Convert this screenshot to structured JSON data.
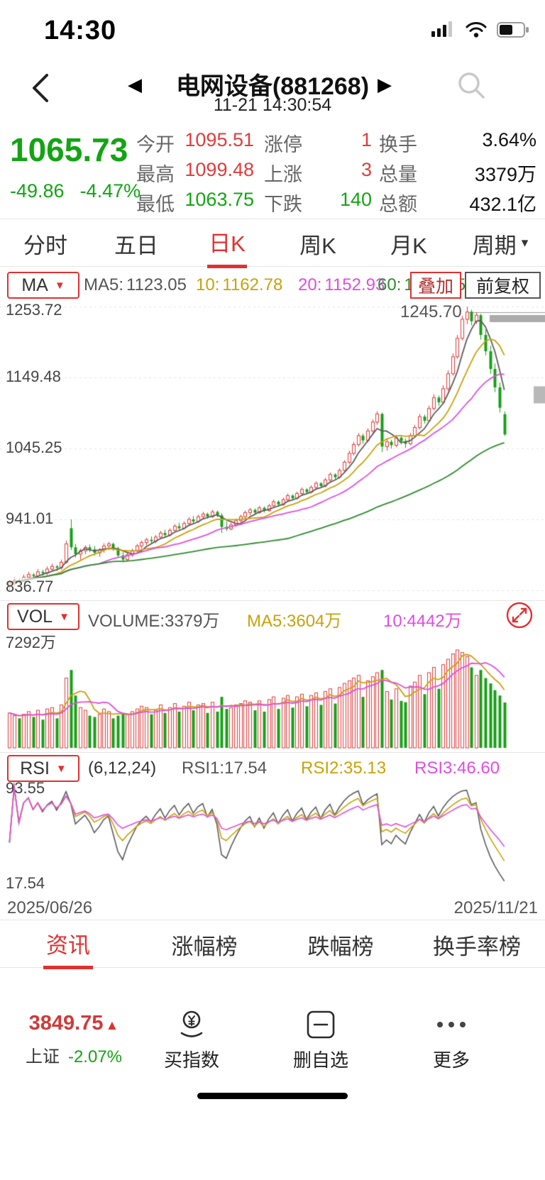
{
  "colors": {
    "up_red": "#e23b3b",
    "down_green": "#18a018",
    "accent_red": "#e03131",
    "price_green": "#13a413",
    "ma5": "#5c5c5c",
    "ma10": "#c9a20a",
    "ma20": "#e04de0",
    "ma60": "#2e8b2e"
  },
  "icons": {
    "caret_down": "▾",
    "prev": "◀",
    "next": "▶",
    "dropdown": "▼"
  },
  "status_bar": {
    "time": "14:30"
  },
  "header": {
    "title": "电网设备(881268)",
    "timestamp": "11-21 14:30:54"
  },
  "quote": {
    "price": "1065.73",
    "change": "-49.86",
    "change_pct": "-4.47%",
    "open_label": "今开",
    "open": "1095.51",
    "high_label": "最高",
    "high": "1099.48",
    "low_label": "最低",
    "low": "1063.75",
    "limit_label": "涨停",
    "limit": "1",
    "up_label": "上涨",
    "up": "3",
    "down_label": "下跌",
    "down": "140",
    "turnover_label": "换手",
    "turnover": "3.64%",
    "volume_label": "总量",
    "volume": "3379万",
    "amount_label": "总额",
    "amount": "432.1亿"
  },
  "period_tabs": [
    "分时",
    "五日",
    "日K",
    "周K",
    "月K",
    "周期"
  ],
  "indicator": {
    "ma_selector": "MA",
    "ma5_label": "MA5:",
    "ma5": "1123.05",
    "ma10_label": "10:",
    "ma10": "1162.78",
    "ma20_label": "20:",
    "ma20": "1152.93",
    "ma60_label": "60:",
    "ma60": "1045.45",
    "overlay": "叠加",
    "adjust": "前复权"
  },
  "kline": {
    "axis_labels": [
      "1253.72",
      "1149.48",
      "1045.25",
      "941.01",
      "836.77"
    ],
    "annotation": "1245.70"
  },
  "vol_panel": {
    "selector": "VOL",
    "volume_label": "VOLUME:",
    "volume": "3379万",
    "ma5_label": "MA5:",
    "ma5": "3604万",
    "ma10_label": "10:",
    "ma10": "4442万",
    "axis_max": "7292万"
  },
  "rsi_panel": {
    "selector": "RSI",
    "params": "(6,12,24)",
    "rsi1_label": "RSI1:",
    "rsi1": "17.54",
    "rsi2_label": "RSI2:",
    "rsi2": "35.13",
    "rsi3_label": "RSI3:",
    "rsi3": "46.60",
    "axis_top": "93.55",
    "axis_bottom": "17.54"
  },
  "dates": {
    "start": "2025/06/26",
    "end": "2025/11/21"
  },
  "bottom_tabs": [
    "资讯",
    "涨幅榜",
    "跌幅榜",
    "换手率榜"
  ],
  "bottom_bar": {
    "index_value": "3849.75",
    "index_arrow": "▲",
    "index_name": "上证",
    "index_change": "-2.07%",
    "action_buy": "买指数",
    "action_del": "删自选",
    "action_more": "更多"
  },
  "chart_data": {
    "type": "candlestick",
    "symbol": "电网设备(881268)",
    "period": "日K",
    "date_range": [
      "2025/06/26",
      "2025/11/21"
    ],
    "price_max": 1253.72,
    "price_min": 836.77,
    "price_axis": [
      1253.72,
      1149.48,
      1045.25,
      941.01,
      836.77
    ],
    "annotation_price": 1245.7,
    "ma_periods": [
      5,
      10,
      20,
      60
    ],
    "ma_values": {
      "MA5": 1123.05,
      "MA10": 1162.78,
      "MA20": 1152.93,
      "MA60": 1045.45
    },
    "volume_max": 7292,
    "volume_unit": "万",
    "volume_values": {
      "VOLUME": 3379,
      "MA5": 3604,
      "MA10": 4442
    },
    "rsi_periods": [
      6,
      12,
      24
    ],
    "rsi_values": {
      "RSI1": 17.54,
      "RSI2": 35.13,
      "RSI3": 46.6
    },
    "rsi_axis": [
      93.55,
      17.54
    ],
    "candles_format": [
      "open",
      "high",
      "low",
      "close",
      "volume_wan"
    ],
    "candles": [
      [
        845,
        852,
        836.77,
        848,
        2600
      ],
      [
        848,
        856,
        844,
        852,
        2400
      ],
      [
        852,
        855,
        846,
        850,
        2200
      ],
      [
        850,
        860,
        848,
        856,
        2500
      ],
      [
        856,
        864,
        852,
        860,
        2700
      ],
      [
        860,
        862,
        853,
        858,
        2300
      ],
      [
        858,
        868,
        855,
        864,
        2800
      ],
      [
        864,
        867,
        858,
        862,
        2100
      ],
      [
        862,
        872,
        859,
        868,
        2900
      ],
      [
        868,
        876,
        864,
        872,
        3000
      ],
      [
        872,
        874,
        865,
        870,
        2200
      ],
      [
        870,
        882,
        867,
        878,
        3200
      ],
      [
        878,
        910,
        876,
        905,
        5200
      ],
      [
        928,
        941,
        896,
        900,
        5800
      ],
      [
        900,
        905,
        885,
        890,
        3900
      ],
      [
        890,
        898,
        882,
        895,
        3000
      ],
      [
        895,
        903,
        890,
        900,
        2800
      ],
      [
        900,
        904,
        893,
        897,
        2400
      ],
      [
        897,
        902,
        888,
        892,
        2300
      ],
      [
        892,
        899,
        886,
        896,
        2500
      ],
      [
        896,
        906,
        892,
        902,
        2900
      ],
      [
        902,
        908,
        896,
        905,
        2700
      ],
      [
        905,
        907,
        895,
        898,
        2200
      ],
      [
        898,
        901,
        885,
        888,
        2400
      ],
      [
        888,
        893,
        878,
        882,
        2600
      ],
      [
        882,
        892,
        879,
        889,
        2500
      ],
      [
        889,
        898,
        886,
        895,
        2700
      ],
      [
        895,
        905,
        892,
        902,
        2900
      ],
      [
        902,
        910,
        898,
        907,
        3100
      ],
      [
        907,
        914,
        903,
        911,
        3000
      ],
      [
        911,
        916,
        905,
        909,
        2500
      ],
      [
        909,
        918,
        906,
        915,
        2800
      ],
      [
        915,
        924,
        912,
        921,
        3200
      ],
      [
        921,
        926,
        915,
        918,
        2600
      ],
      [
        918,
        928,
        916,
        925,
        3000
      ],
      [
        925,
        934,
        922,
        931,
        3300
      ],
      [
        931,
        936,
        925,
        928,
        2700
      ],
      [
        928,
        938,
        926,
        935,
        3100
      ],
      [
        935,
        944,
        932,
        941,
        3400
      ],
      [
        941,
        946,
        935,
        938,
        2800
      ],
      [
        938,
        948,
        936,
        945,
        3200
      ],
      [
        945,
        952,
        941,
        949,
        3300
      ],
      [
        949,
        951,
        942,
        945,
        2600
      ],
      [
        945,
        955,
        943,
        952,
        3400
      ],
      [
        952,
        954,
        944,
        947,
        2700
      ],
      [
        947,
        950,
        921,
        930,
        3800
      ],
      [
        930,
        938,
        924,
        927,
        2900
      ],
      [
        927,
        936,
        925,
        933,
        3000
      ],
      [
        933,
        942,
        930,
        939,
        3200
      ],
      [
        939,
        948,
        936,
        945,
        3300
      ],
      [
        945,
        954,
        942,
        951,
        3500
      ],
      [
        951,
        958,
        947,
        955,
        3400
      ],
      [
        955,
        957,
        948,
        951,
        2800
      ],
      [
        951,
        961,
        949,
        958,
        3500
      ],
      [
        958,
        960,
        951,
        954,
        2700
      ],
      [
        954,
        964,
        952,
        961,
        3600
      ],
      [
        961,
        970,
        958,
        967,
        3800
      ],
      [
        967,
        969,
        960,
        963,
        2900
      ],
      [
        963,
        973,
        961,
        970,
        3700
      ],
      [
        970,
        979,
        967,
        976,
        3900
      ],
      [
        976,
        978,
        969,
        972,
        3000
      ],
      [
        972,
        982,
        970,
        979,
        3800
      ],
      [
        979,
        988,
        976,
        985,
        4000
      ],
      [
        985,
        987,
        978,
        981,
        3100
      ],
      [
        981,
        991,
        979,
        988,
        3900
      ],
      [
        988,
        997,
        985,
        994,
        4100
      ],
      [
        994,
        996,
        987,
        990,
        3200
      ],
      [
        990,
        1002,
        988,
        999,
        4200
      ],
      [
        999,
        1010,
        996,
        1007,
        4400
      ],
      [
        1007,
        1009,
        1000,
        1003,
        3300
      ],
      [
        1003,
        1016,
        1001,
        1013,
        4500
      ],
      [
        1013,
        1028,
        1010,
        1025,
        4800
      ],
      [
        1025,
        1042,
        1022,
        1038,
        5000
      ],
      [
        1038,
        1055,
        1035,
        1051,
        5200
      ],
      [
        1051,
        1068,
        1048,
        1064,
        5400
      ],
      [
        1064,
        1067,
        1052,
        1057,
        3800
      ],
      [
        1057,
        1075,
        1054,
        1071,
        5000
      ],
      [
        1071,
        1088,
        1068,
        1084,
        5300
      ],
      [
        1084,
        1100,
        1080,
        1096,
        5600
      ],
      [
        1096,
        1098,
        1040,
        1048,
        5800
      ],
      [
        1048,
        1060,
        1042,
        1055,
        4200
      ],
      [
        1055,
        1058,
        1045,
        1050,
        3600
      ],
      [
        1050,
        1065,
        1047,
        1061,
        4400
      ],
      [
        1061,
        1063,
        1051,
        1056,
        3500
      ],
      [
        1056,
        1060,
        1046,
        1052,
        3400
      ],
      [
        1052,
        1068,
        1050,
        1064,
        4600
      ],
      [
        1064,
        1080,
        1061,
        1076,
        4900
      ],
      [
        1076,
        1096,
        1073,
        1092,
        5400
      ],
      [
        1092,
        1095,
        1082,
        1086,
        4000
      ],
      [
        1086,
        1108,
        1084,
        1104,
        5600
      ],
      [
        1104,
        1125,
        1101,
        1120,
        6000
      ],
      [
        1120,
        1123,
        1108,
        1113,
        4400
      ],
      [
        1113,
        1138,
        1110,
        1133,
        6200
      ],
      [
        1133,
        1160,
        1130,
        1155,
        6600
      ],
      [
        1155,
        1185,
        1152,
        1180,
        7000
      ],
      [
        1180,
        1212,
        1177,
        1207,
        7292
      ],
      [
        1207,
        1240,
        1204,
        1235,
        7100
      ],
      [
        1235,
        1253.72,
        1228,
        1245.7,
        6800
      ],
      [
        1246,
        1249,
        1226,
        1232,
        6000
      ],
      [
        1232,
        1245,
        1228,
        1241,
        5400
      ],
      [
        1241,
        1243,
        1205,
        1212,
        5800
      ],
      [
        1212,
        1220,
        1182,
        1188,
        5200
      ],
      [
        1188,
        1196,
        1155,
        1162,
        4800
      ],
      [
        1162,
        1170,
        1128,
        1135,
        4300
      ],
      [
        1135,
        1142,
        1098,
        1105,
        3900
      ],
      [
        1095.51,
        1099.48,
        1063.75,
        1065.73,
        3379
      ]
    ]
  }
}
